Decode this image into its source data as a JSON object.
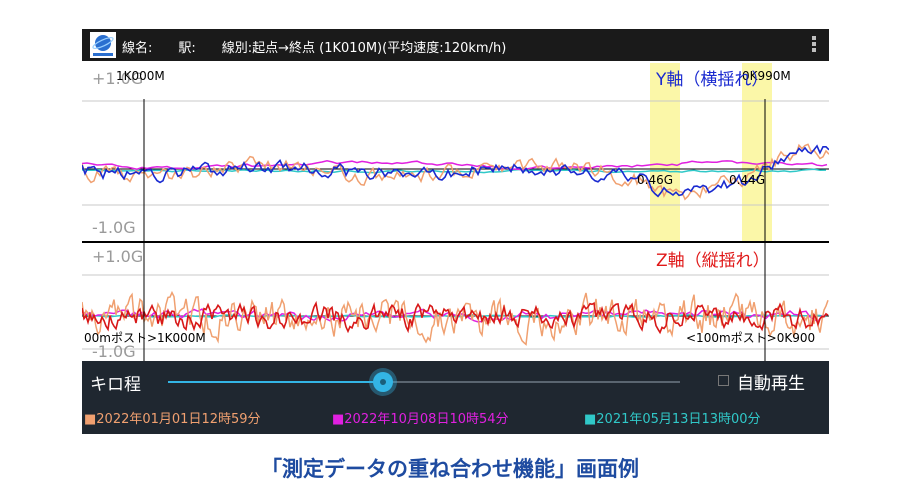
{
  "header": {
    "title": "線名:　　駅:　　線別:起点→終点 (1K010M)(平均速度:120km/h)",
    "logo_icon": "app-logo-icon",
    "menu_icon": "overflow-menu-icon"
  },
  "plot_y": {
    "axis_name": "Y軸（横揺れ）",
    "axis_color": "#1a2ad0",
    "top_label": "+1.0G",
    "bottom_label": "-1.0G",
    "marker_left_text": "1K000M",
    "marker_right_text": "0K990M",
    "peak_labels": [
      "0.46G",
      "0.44G"
    ]
  },
  "plot_z": {
    "axis_name": "Z軸（縦揺れ）",
    "axis_color": "#e01818",
    "top_label": "+1.0G",
    "bottom_label": "-1.0G",
    "post_left_text": "00mポスト>1K000M",
    "post_right_text": "<100mポスト>0K900"
  },
  "controls": {
    "kilo_label": "キロ程",
    "slider_value": 0.42,
    "auto_play_label": "自動再生",
    "auto_play_checked": false
  },
  "legend": [
    {
      "label": "■2022年01月01日12時59分",
      "color": "#f0a070"
    },
    {
      "label": "■2022年10月08日10時54分",
      "color": "#e020e0"
    },
    {
      "label": "■2021年05月13日13時00分",
      "color": "#30c8c8"
    }
  ],
  "caption": "「測定データの重ね合わせ機能」画面例"
}
